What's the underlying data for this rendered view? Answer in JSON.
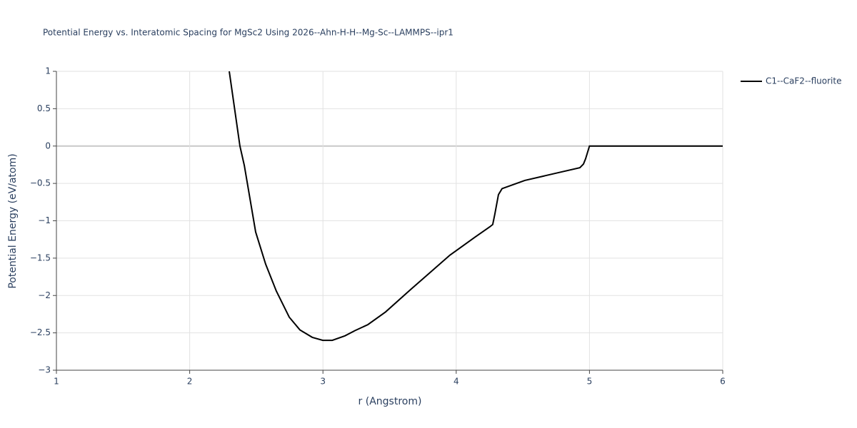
{
  "chart_data": {
    "type": "line",
    "title": "Potential Energy vs. Interatomic Spacing for MgSc2 Using 2026--Ahn-H-H--Mg-Sc--LAMMPS--ipr1",
    "x_label": "r (Angstrom)",
    "y_label": "Potential Energy (eV/atom)",
    "x": [
      2.297,
      2.377,
      2.41,
      2.495,
      2.57,
      2.65,
      2.747,
      2.827,
      2.92,
      2.999,
      3.07,
      3.165,
      3.24,
      3.337,
      3.47,
      3.658,
      3.953,
      4.14,
      4.253,
      4.274,
      4.29,
      4.317,
      4.344,
      4.515,
      4.757,
      4.928,
      4.955,
      4.971,
      5.0,
      6.0
    ],
    "series": [
      {
        "name": "C1--CaF2--fluorite",
        "color": "#000000",
        "values": [
          1.0,
          0.0,
          -0.26,
          -1.15,
          -1.58,
          -1.94,
          -2.29,
          -2.46,
          -2.56,
          -2.6,
          -2.6,
          -2.54,
          -2.47,
          -2.39,
          -2.22,
          -1.92,
          -1.46,
          -1.22,
          -1.08,
          -1.05,
          -0.91,
          -0.65,
          -0.57,
          -0.46,
          -0.36,
          -0.29,
          -0.24,
          -0.17,
          0.0,
          0.0
        ]
      }
    ],
    "xlim": [
      1,
      6
    ],
    "xticks": [
      1,
      2,
      3,
      4,
      5,
      6
    ],
    "ylim": [
      -3,
      1
    ],
    "yticks": [
      {
        "value": -3,
        "label": "−3"
      },
      {
        "value": -2.5,
        "label": "−2.5"
      },
      {
        "value": -2,
        "label": "−2"
      },
      {
        "value": -1.5,
        "label": "−1.5"
      },
      {
        "value": -1,
        "label": "−1"
      },
      {
        "value": -0.5,
        "label": "−0.5"
      },
      0,
      0.5,
      1
    ],
    "grid": true,
    "legend": "right"
  }
}
